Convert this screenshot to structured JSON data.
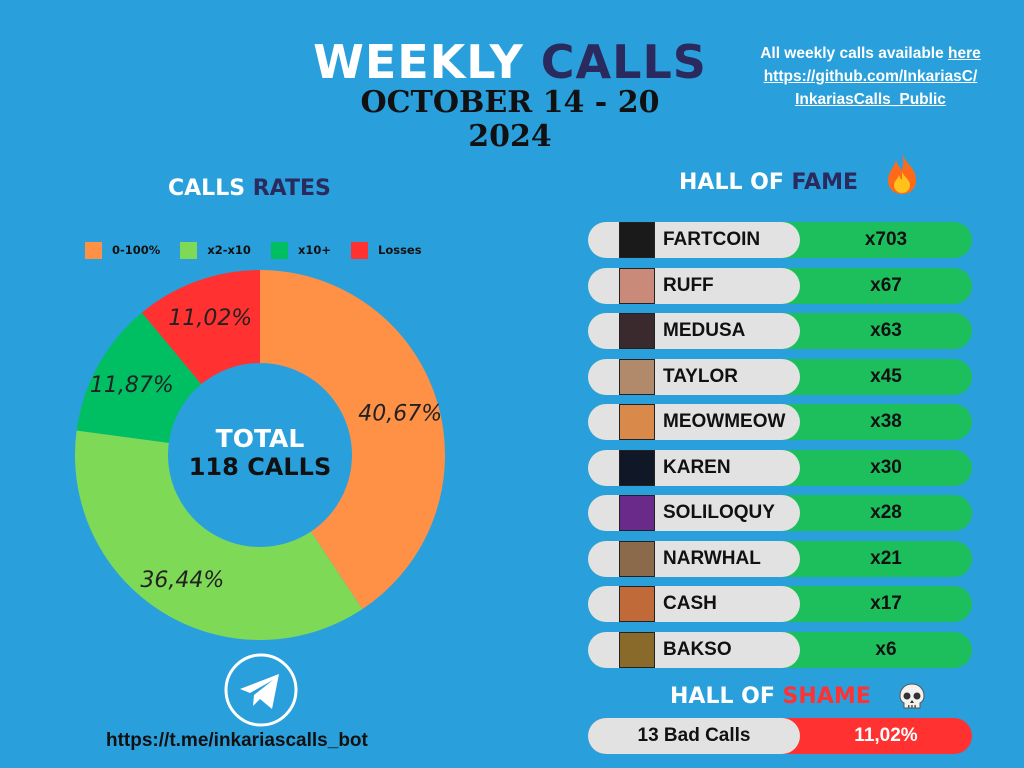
{
  "header": {
    "title_part1": "WEEKLY",
    "title_part2": "CALLS",
    "date_line1": "OCTOBER 14 - 20",
    "date_line2": "2024",
    "note_text": "All weekly calls available",
    "note_here": "here",
    "note_url_line1": "https://github.com/InkariasC/",
    "note_url_line2": "InkariasCalls_Public"
  },
  "rates_section": {
    "title_part1": "CALLS",
    "title_part2": "RATES"
  },
  "hall_of_fame": {
    "title_part1": "HALL OF",
    "title_part2": "FAME",
    "icon": "fire-icon"
  },
  "hall_of_shame": {
    "title_part1": "HALL OF",
    "title_part2": "SHAME",
    "icon": "skull-icon",
    "label": "13 Bad Calls",
    "value": "11,02%"
  },
  "colors": {
    "bg": "#29a0dc",
    "orange": "#ff9147",
    "light_green": "#7ed957",
    "green": "#00bf63",
    "red": "#ff3131",
    "navy": "#2a2a5e"
  },
  "chart_data": {
    "type": "pie",
    "style": "donut",
    "title": "CALLS RATES",
    "categories": [
      "0-100%",
      "x2-x10",
      "x10+",
      "Losses"
    ],
    "values": [
      40.67,
      36.44,
      11.87,
      11.02
    ],
    "labels": [
      "40,67%",
      "36,44%",
      "11,87%",
      "11,02%"
    ],
    "colors": [
      "#ff9147",
      "#7ed957",
      "#00bf63",
      "#ff3131"
    ],
    "legend_position": "top",
    "center_label_line1": "TOTAL",
    "center_label_line2": "118 CALLS"
  },
  "fame_rows": [
    {
      "name": "FARTCOIN",
      "multiplier": "x703",
      "avatar_color": "#1a1a1a"
    },
    {
      "name": "RUFF",
      "multiplier": "x67",
      "avatar_color": "#c98a7a"
    },
    {
      "name": "MEDUSA",
      "multiplier": "x63",
      "avatar_color": "#3a2a2e"
    },
    {
      "name": "TAYLOR",
      "multiplier": "x45",
      "avatar_color": "#b08a6a"
    },
    {
      "name": "MEOWMEOW",
      "multiplier": "x38",
      "avatar_color": "#d98a4a"
    },
    {
      "name": "KAREN",
      "multiplier": "x30",
      "avatar_color": "#101828"
    },
    {
      "name": "SOLILOQUY",
      "multiplier": "x28",
      "avatar_color": "#6a2a8a"
    },
    {
      "name": "NARWHAL",
      "multiplier": "x21",
      "avatar_color": "#8a6a4a"
    },
    {
      "name": "CASH",
      "multiplier": "x17",
      "avatar_color": "#c06a3a"
    },
    {
      "name": "BAKSO",
      "multiplier": "x6",
      "avatar_color": "#8a6a2a"
    }
  ],
  "footer": {
    "telegram_url": "https://t.me/inkariascalls_bot",
    "icon": "telegram-icon"
  }
}
